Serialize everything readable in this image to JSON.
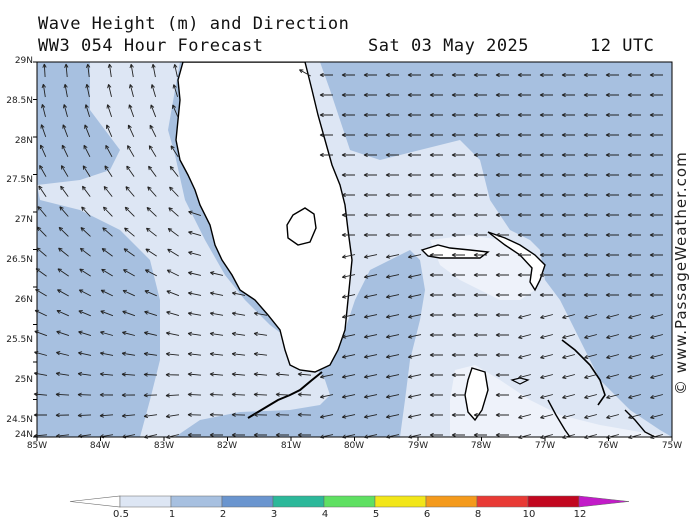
{
  "header": {
    "title": "Wave Height (m) and Direction",
    "model": "WW3 054 Hour Forecast",
    "date": "Sat 03 May 2025",
    "time": "12 UTC"
  },
  "credit": "© www.PassageWeather.com",
  "axes": {
    "lat_labels": [
      "29N",
      "28.5N",
      "28N",
      "27.5N",
      "27N",
      "26.5N",
      "26N",
      "25.5N",
      "25N",
      "24.5N",
      "24N"
    ],
    "lon_labels": [
      "85W",
      "84W",
      "83W",
      "82W",
      "81W",
      "80W",
      "79W",
      "78W",
      "77W",
      "76W",
      "75W"
    ]
  },
  "colorbar": {
    "labels": [
      "0.5",
      "1",
      "2",
      "3",
      "4",
      "5",
      "6",
      "8",
      "10",
      "12"
    ],
    "colors": [
      "#dde6f4",
      "#a7c0e0",
      "#6a95cf",
      "#2cb89a",
      "#5fe062",
      "#f2e619",
      "#f49a1c",
      "#e83a35",
      "#c2071f",
      "#c21bc8"
    ]
  },
  "legend": {
    "wave_colors": {
      "lt_half": "#dde6f4",
      "half_to_one": "#a7c0e0"
    },
    "land": "#ffffff",
    "coast": "#000000"
  }
}
